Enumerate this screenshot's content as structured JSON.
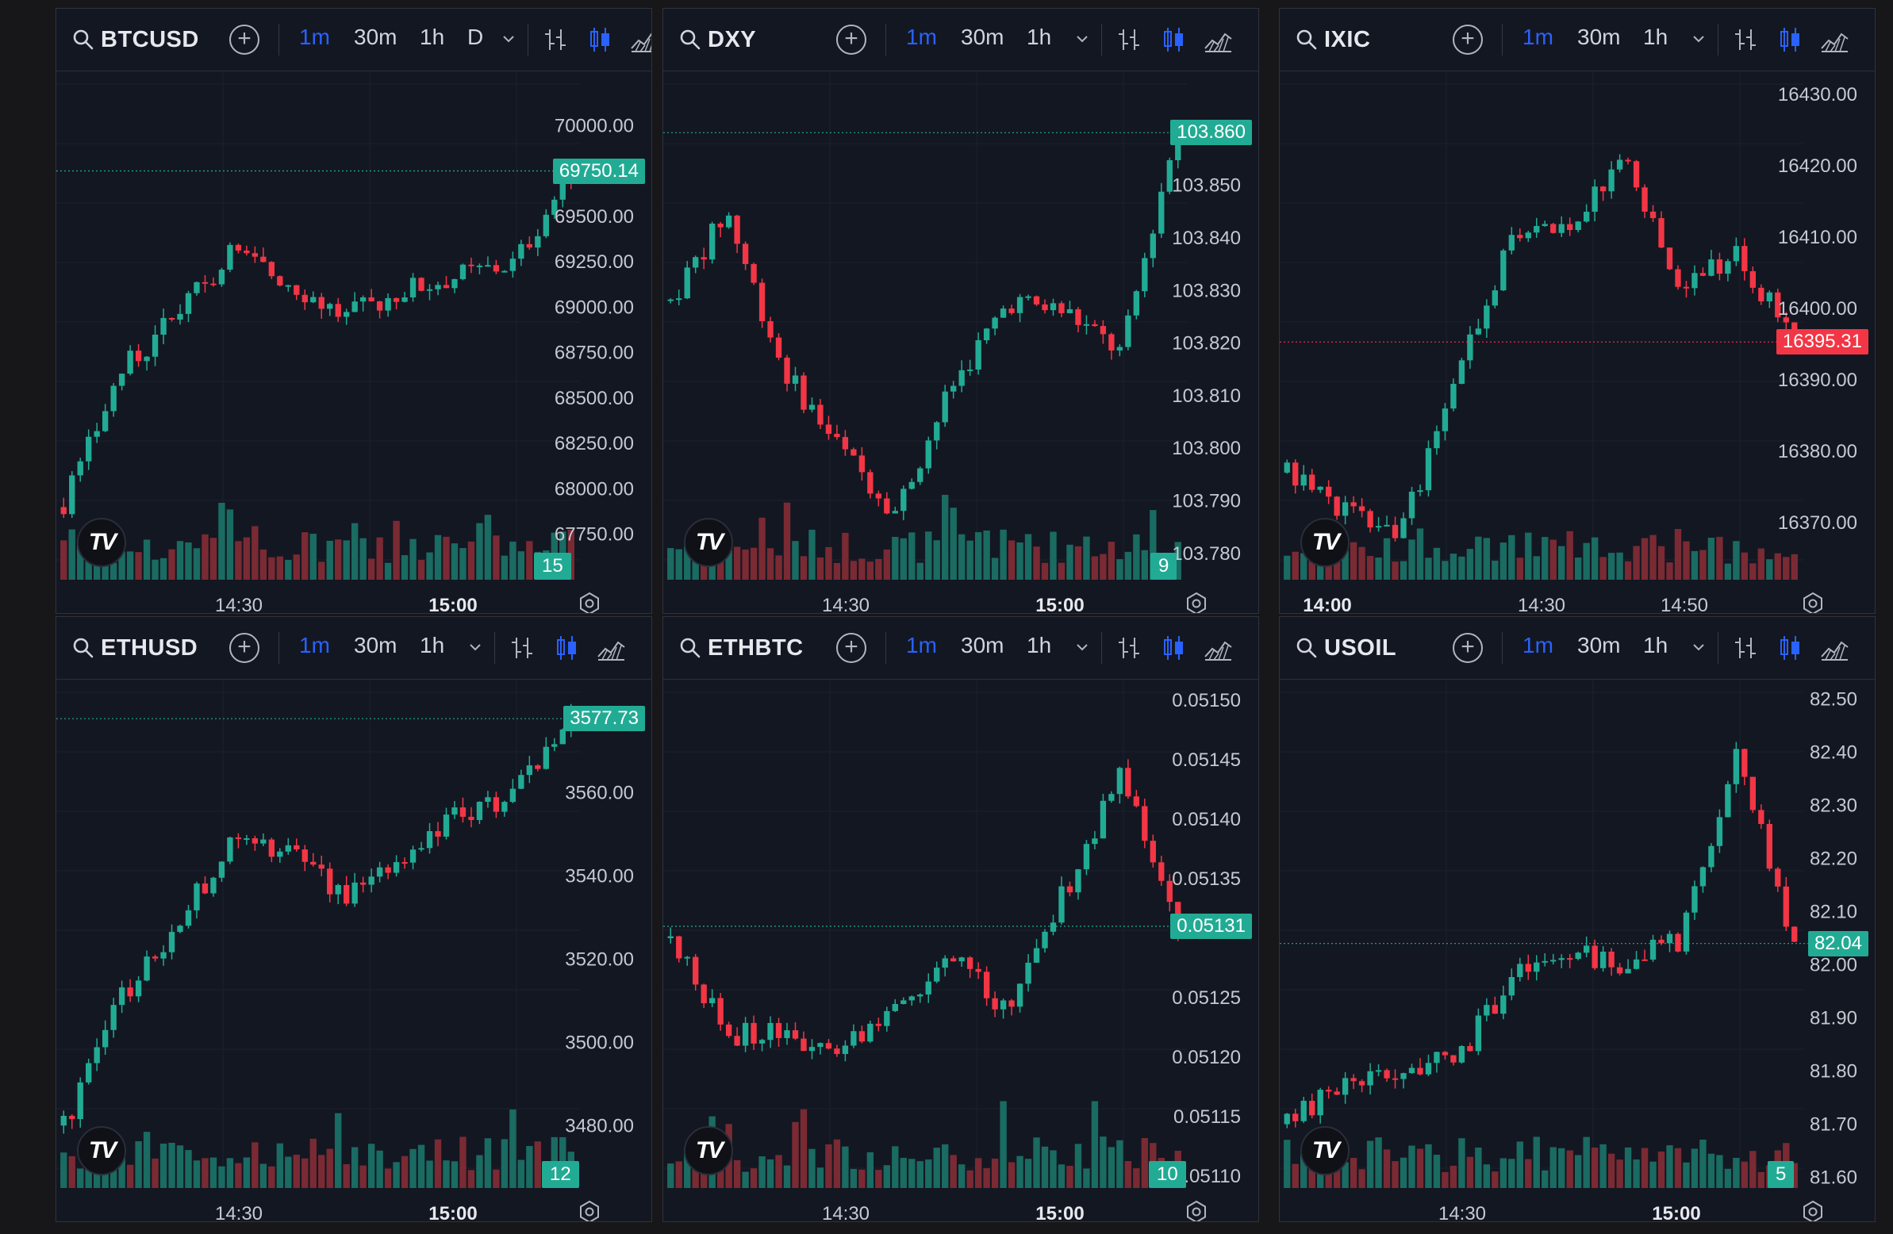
{
  "colors": {
    "up": "#22ab94",
    "down": "#f23645",
    "accent": "#2962ff",
    "volUp": "#1a6b62",
    "volDown": "#7a2a33"
  },
  "panels": [
    {
      "symbol": "BTCUSD",
      "timeframes": [
        "1m",
        "30m",
        "1h",
        "D"
      ],
      "active_tf": "1m",
      "price_axis": [
        "70000.00",
        "69750.14",
        "69500.00",
        "69250.00",
        "69000.00",
        "68750.00",
        "68500.00",
        "68250.00",
        "68000.00",
        "67750.00"
      ],
      "last_price": "69750.14",
      "last_price_color": "up",
      "volume_value": "15",
      "time_axis": [
        {
          "label": "14:30",
          "bold": false
        },
        {
          "label": "15:00",
          "bold": true
        }
      ],
      "chart_data": {
        "type": "candlestick",
        "ylim": [
          67500,
          70250
        ],
        "last": 69750.14,
        "trend": [
          67900,
          68650,
          68950,
          69300,
          69150,
          68950,
          69100,
          69180,
          69250,
          69750
        ],
        "seed": 3
      }
    },
    {
      "symbol": "DXY",
      "timeframes": [
        "1m",
        "30m",
        "1h"
      ],
      "active_tf": "1m",
      "price_axis": [
        "103.860",
        "103.850",
        "103.840",
        "103.830",
        "103.820",
        "103.810",
        "103.800",
        "103.790",
        "103.780"
      ],
      "last_price": "103.860",
      "last_price_color": "up",
      "volume_value": "9",
      "time_axis": [
        {
          "label": "14:30",
          "bold": false
        },
        {
          "label": "15:00",
          "bold": true
        }
      ],
      "chart_data": {
        "type": "candlestick",
        "ylim": [
          103.775,
          103.87
        ],
        "last": 103.86,
        "trend": [
          103.828,
          103.845,
          103.815,
          103.8,
          103.788,
          103.812,
          103.828,
          103.826,
          103.818,
          103.862
        ],
        "seed": 7
      }
    },
    {
      "symbol": "IXIC",
      "timeframes": [
        "1m",
        "30m",
        "1h"
      ],
      "active_tf": "1m",
      "price_axis": [
        "16430.00",
        "16420.00",
        "16410.00",
        "16400.00",
        "16395.31",
        "16390.00",
        "16380.00",
        "16370.00"
      ],
      "last_price": "16395.31",
      "last_price_color": "down",
      "volume_value": "",
      "time_axis": [
        {
          "label": "14:00",
          "bold": true
        },
        {
          "label": "14:30",
          "bold": false
        },
        {
          "label": "14:50",
          "bold": false
        }
      ],
      "chart_data": {
        "type": "candlestick",
        "ylim": [
          16362,
          16432
        ],
        "last": 16395.31,
        "trend": [
          16377,
          16372,
          16368,
          16390,
          16410,
          16412,
          16420,
          16402,
          16408,
          16395
        ],
        "seed": 11
      }
    },
    {
      "symbol": "ETHUSD",
      "timeframes": [
        "1m",
        "30m",
        "1h"
      ],
      "active_tf": "1m",
      "price_axis": [
        "3577.73",
        "3560.00",
        "3540.00",
        "3520.00",
        "3500.00",
        "3480.00"
      ],
      "last_price": "3577.73",
      "last_price_color": "up",
      "volume_value": "12",
      "time_axis": [
        {
          "label": "14:30",
          "bold": false
        },
        {
          "label": "15:00",
          "bold": true
        }
      ],
      "chart_data": {
        "type": "candlestick",
        "ylim": [
          3465,
          3585
        ],
        "last": 3577.73,
        "trend": [
          3480,
          3510,
          3528,
          3548,
          3545,
          3536,
          3542,
          3555,
          3560,
          3577
        ],
        "seed": 5
      }
    },
    {
      "symbol": "ETHBTC",
      "timeframes": [
        "1m",
        "30m",
        "1h"
      ],
      "active_tf": "1m",
      "price_axis": [
        "0.05150",
        "0.05145",
        "0.05140",
        "0.05135",
        "0.05131",
        "0.05125",
        "0.05120",
        "0.05115",
        "0.05110"
      ],
      "last_price": "0.05131",
      "last_price_color": "up",
      "volume_value": "10",
      "time_axis": [
        {
          "label": "14:30",
          "bold": false
        },
        {
          "label": "15:00",
          "bold": true
        }
      ],
      "chart_data": {
        "type": "candlestick",
        "ylim": [
          0.05109,
          0.05151
        ],
        "last": 0.05131,
        "trend": [
          0.0513,
          0.05122,
          0.05122,
          0.0512,
          0.05125,
          0.05128,
          0.05124,
          0.05134,
          0.05144,
          0.05131
        ],
        "seed": 13
      }
    },
    {
      "symbol": "USOIL",
      "timeframes": [
        "1m",
        "30m",
        "1h"
      ],
      "active_tf": "1m",
      "price_axis": [
        "82.50",
        "82.40",
        "82.30",
        "82.20",
        "82.10",
        "82.04",
        "82.00",
        "81.90",
        "81.80",
        "81.70",
        "81.60"
      ],
      "last_price": "82.04",
      "last_price_color": "up",
      "volume_value": "5",
      "time_axis": [
        {
          "label": "14:30",
          "bold": false
        },
        {
          "label": "15:00",
          "bold": true
        }
      ],
      "chart_data": {
        "type": "candlestick",
        "ylim": [
          81.58,
          82.52
        ],
        "last": 82.04,
        "trend": [
          81.7,
          81.78,
          81.8,
          81.82,
          81.98,
          82.02,
          82.0,
          82.05,
          82.4,
          82.04
        ],
        "seed": 17
      }
    }
  ]
}
